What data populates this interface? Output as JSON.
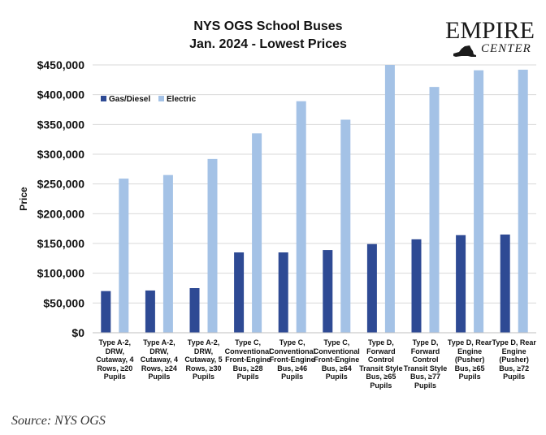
{
  "chart_data": {
    "type": "bar",
    "title_lines": [
      "NYS OGS School Buses",
      "Jan. 2024 - Lowest Prices"
    ],
    "ylabel": "Price",
    "ylim": [
      0,
      450000
    ],
    "yticks": [
      0,
      50000,
      100000,
      150000,
      200000,
      250000,
      300000,
      350000,
      400000,
      450000
    ],
    "ytick_labels": [
      "$0",
      "$50,000",
      "$100,000",
      "$150,000",
      "$200,000",
      "$250,000",
      "$300,000",
      "$350,000",
      "$400,000",
      "$450,000"
    ],
    "legend_position": "top-left",
    "grid": true,
    "categories": [
      [
        "Type A-2,",
        "DRW,",
        "Cutaway, 4",
        "Rows, ≥20",
        "Pupils"
      ],
      [
        "Type A-2,",
        "DRW,",
        "Cutaway, 4",
        "Rows, ≥24",
        "Pupils"
      ],
      [
        "Type A-2,",
        "DRW,",
        "Cutaway, 5",
        "Rows, ≥30",
        "Pupils"
      ],
      [
        "Type C,",
        "Conventional",
        "Front-Engine",
        "Bus, ≥28",
        "Pupils"
      ],
      [
        "Type C,",
        "Conventional",
        "Front-Engine",
        "Bus, ≥46",
        "Pupils"
      ],
      [
        "Type C,",
        "Conventional",
        "Front-Engine",
        "Bus, ≥64",
        "Pupils"
      ],
      [
        "Type D,",
        "Forward",
        "Control",
        "Transit Style",
        "Bus, ≥65",
        "Pupils"
      ],
      [
        "Type D,",
        "Forward",
        "Control",
        "Transit Style",
        "Bus, ≥77",
        "Pupils"
      ],
      [
        "Type D, Rear",
        "Engine",
        "(Pusher)",
        "Bus, ≥65",
        "Pupils"
      ],
      [
        "Type D, Rear",
        "Engine",
        "(Pusher)",
        "Bus, ≥72",
        "Pupils"
      ]
    ],
    "series": [
      {
        "name": "Gas/Diesel",
        "color": "#2e4a94",
        "values": [
          70000,
          71000,
          75000,
          135000,
          135000,
          139000,
          149000,
          157000,
          164000,
          165000
        ]
      },
      {
        "name": "Electric",
        "color": "#a4c2e6",
        "values": [
          259000,
          265000,
          292000,
          335000,
          389000,
          358000,
          450000,
          413000,
          441000,
          442000
        ]
      }
    ]
  },
  "logo": {
    "main": "EMPIRE",
    "sub": "CENTER"
  },
  "source": "Source: NYS OGS"
}
